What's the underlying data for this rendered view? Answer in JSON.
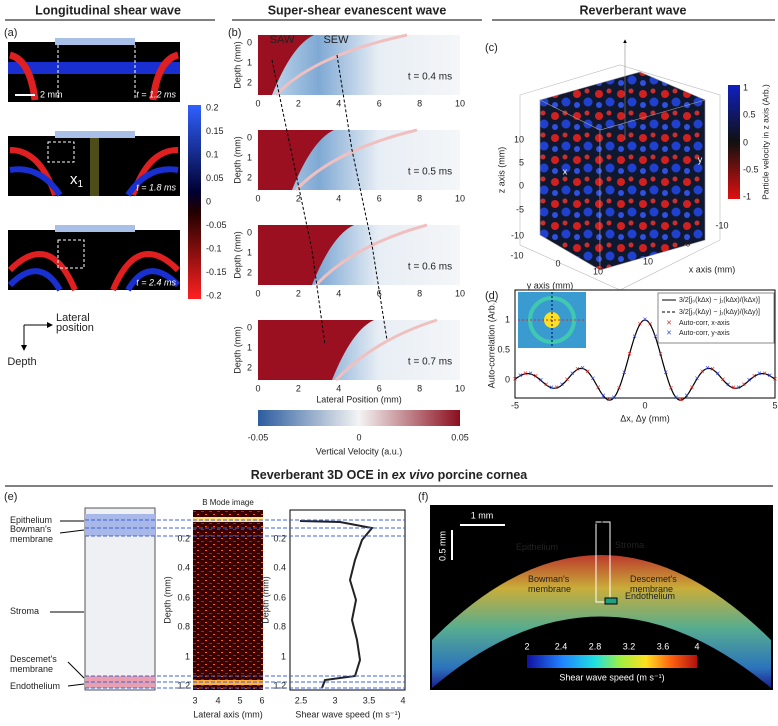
{
  "headers": {
    "longitudinal": "Longitudinal shear wave",
    "super_shear": "Super-shear evanescent wave",
    "reverberant": "Reverberant wave",
    "cornea": [
      "Reverberant 3D OCE in ",
      "ex vivo",
      " porcine cornea"
    ]
  },
  "panel_a": {
    "label": "(a)",
    "scale_bar": "2 mm",
    "times": [
      "t = 1.2 ms",
      "t = 1.8 ms",
      "t = 2.4 ms"
    ],
    "marker": {
      "symbol": "x",
      "subscript": "1"
    },
    "colorbar_ticks": [
      "0.2",
      "0.15",
      "0.1",
      "0.05",
      "0",
      "-0.05",
      "-0.1",
      "-0.15",
      "-0.2"
    ],
    "lateral_label": [
      "Lateral",
      "position"
    ],
    "depth_label": "Depth"
  },
  "panel_b": {
    "label": "(b)",
    "wave_labels": [
      "SAW",
      "SEW"
    ],
    "times": [
      "t = 0.4 ms",
      "t = 0.5 ms",
      "t = 0.6 ms",
      "t = 0.7 ms"
    ],
    "y_label": "Depth (mm)",
    "y_ticks": [
      "0",
      "1",
      "2"
    ],
    "x_ticks": [
      "0",
      "2",
      "4",
      "6",
      "8",
      "10"
    ],
    "x_label": "Lateral Position (mm)",
    "colorbar_ticks": [
      "-0.05",
      "0",
      "0.05"
    ],
    "colorbar_label": "Vertical Velocity (a.u.)"
  },
  "panel_c": {
    "label": "(c)",
    "z_label": "z axis (mm)",
    "z_ticks": [
      "10",
      "5",
      "0",
      "-5",
      "-10"
    ],
    "y_label": "y axis (mm)",
    "y_ticks": [
      "-10",
      "0",
      "10"
    ],
    "x_label": "x axis (mm)",
    "x_ticks": [
      "10",
      "0",
      "-10"
    ],
    "cube_axes": [
      "x",
      "y"
    ],
    "colorbar_label": "Particle velocity in z axis (Arb.)",
    "colorbar_ticks": [
      "1",
      "0.5",
      "0",
      "-0.5",
      "-1"
    ]
  },
  "panel_d": {
    "label": "(d)",
    "y_label": "Auto-correlation (Arb.)",
    "y_ticks": [
      "1",
      "0.5",
      "0"
    ],
    "x_ticks": [
      "-5",
      "0",
      "5"
    ],
    "x_label": "Δx, Δy (mm)",
    "legend": [
      "3/2[j₀(kΔx) − j₁(kΔx)/(kΔx)]",
      "3/2[j₀(kΔy) − j₁(kΔy)/(kΔy)]",
      "Auto-corr, x-axis",
      "Auto-corr, y-axis"
    ]
  },
  "panel_e": {
    "label": "(e)",
    "layers": [
      [
        "Epithelium"
      ],
      [
        "Bowman's",
        "membrane"
      ],
      [
        "Stroma"
      ],
      [
        "Descemet's",
        "membrane"
      ],
      [
        "Endothelium"
      ]
    ],
    "bmode_title": "B Mode image",
    "depth_label": "Depth (mm)",
    "depth_ticks": [
      "0.2",
      "0.4",
      "0.6",
      "0.8",
      "1",
      "1.2"
    ],
    "lateral_ticks": [
      "3",
      "4",
      "5",
      "6"
    ],
    "lateral_label": "Lateral axis (mm)",
    "speed_ticks": [
      "2.5",
      "3",
      "3.5",
      "4"
    ],
    "speed_label": "Shear wave speed (m s⁻¹)"
  },
  "panel_f": {
    "label": "(f)",
    "scale_x": "1 mm",
    "scale_y": "0.5 mm",
    "layers": [
      [
        "Epithelium"
      ],
      [
        "Stroma"
      ],
      [
        "Bowman's",
        "membrane"
      ],
      [
        "Descemet's",
        "membrane"
      ],
      [
        "Endothelium"
      ]
    ],
    "colorbar_ticks": [
      "2",
      "2.4",
      "2.8",
      "3.2",
      "3.6",
      "4"
    ],
    "colorbar_label": "Shear wave speed (m s⁻¹)"
  }
}
